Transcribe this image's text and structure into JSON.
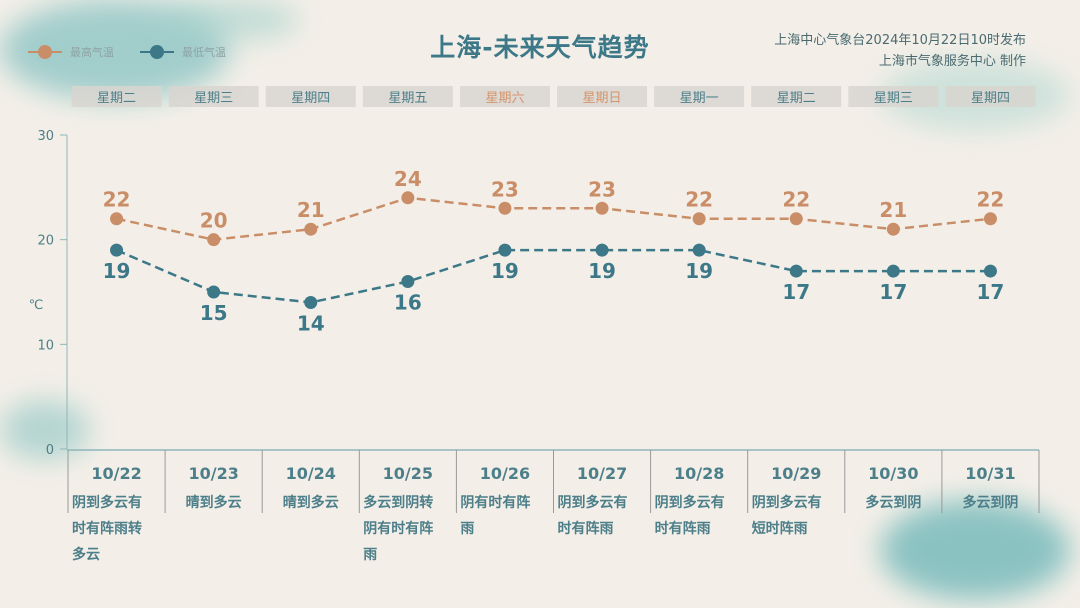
{
  "header": {
    "title": "上海-未来天气趋势",
    "publisher_line1": "上海中心气象台2024年10月22日10时发布",
    "publisher_line2": "上海市气象服务中心 制作"
  },
  "colors": {
    "high": "#c98e67",
    "low": "#3d7888",
    "weekday": "#4d7f8a",
    "weekend": "#d4956c",
    "tab_bg": "#d8d5d0"
  },
  "chart_data": {
    "type": "line",
    "ylabel": "℃",
    "ylim": [
      0,
      30
    ],
    "yticks": [
      "0",
      "10",
      "20",
      "30"
    ],
    "weekdays": [
      "星期二",
      "星期三",
      "星期四",
      "星期五",
      "星期六",
      "星期日",
      "星期一",
      "星期二",
      "星期三",
      "星期四"
    ],
    "weekend": [
      false,
      false,
      false,
      false,
      true,
      true,
      false,
      false,
      false,
      false
    ],
    "categories": [
      "10/22",
      "10/23",
      "10/24",
      "10/25",
      "10/26",
      "10/27",
      "10/28",
      "10/29",
      "10/30",
      "10/31"
    ],
    "weather": [
      "阴到多云有时有阵雨转多云",
      "晴到多云",
      "晴到多云",
      "多云到阴转阴有时有阵雨",
      "阴有时有阵雨",
      "阴到多云有时有阵雨",
      "阴到多云有时有阵雨",
      "阴到多云有短时阵雨",
      "多云到阴",
      "多云到阴"
    ],
    "legend_position": "top-left",
    "series": [
      {
        "name": "最高气温",
        "values": [
          22,
          20,
          21,
          24,
          23,
          23,
          22,
          22,
          21,
          22
        ]
      },
      {
        "name": "最低气温",
        "values": [
          19,
          15,
          14,
          16,
          19,
          19,
          19,
          17,
          17,
          17
        ]
      }
    ]
  }
}
